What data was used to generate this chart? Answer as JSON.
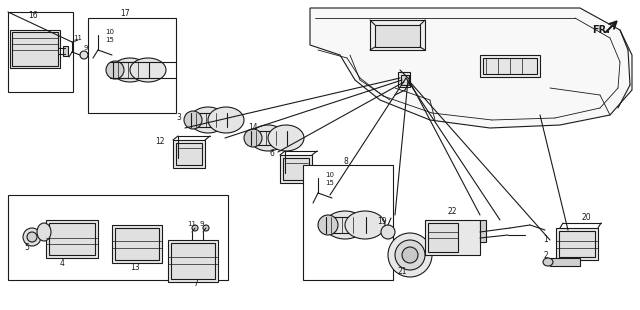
{
  "bg_color": "#ffffff",
  "line_color": "#1a1a1a",
  "figsize": [
    6.4,
    3.1
  ],
  "dpi": 100
}
